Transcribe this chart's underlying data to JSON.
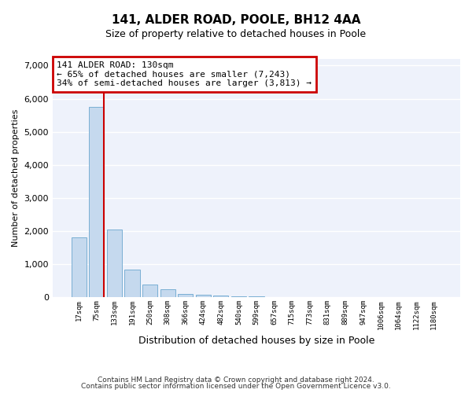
{
  "title": "141, ALDER ROAD, POOLE, BH12 4AA",
  "subtitle": "Size of property relative to detached houses in Poole",
  "xlabel": "Distribution of detached houses by size in Poole",
  "ylabel": "Number of detached properties",
  "bar_color": "#c5d9ee",
  "bar_edge_color": "#7aafd4",
  "background_color": "#eef2fb",
  "grid_color": "#ffffff",
  "categories": [
    "17sqm",
    "75sqm",
    "133sqm",
    "191sqm",
    "250sqm",
    "308sqm",
    "366sqm",
    "424sqm",
    "482sqm",
    "540sqm",
    "599sqm",
    "657sqm",
    "715sqm",
    "773sqm",
    "831sqm",
    "889sqm",
    "947sqm",
    "1006sqm",
    "1064sqm",
    "1122sqm",
    "1180sqm"
  ],
  "values": [
    1800,
    5750,
    2050,
    830,
    380,
    240,
    110,
    80,
    55,
    30,
    20,
    5,
    2,
    0,
    0,
    0,
    0,
    0,
    0,
    0,
    0
  ],
  "ylim": [
    0,
    7200
  ],
  "yticks": [
    0,
    1000,
    2000,
    3000,
    4000,
    5000,
    6000,
    7000
  ],
  "vline_color": "#cc0000",
  "annotation_text": "141 ALDER ROAD: 130sqm\n← 65% of detached houses are smaller (7,243)\n34% of semi-detached houses are larger (3,813) →",
  "annotation_box_color": "#cc0000",
  "footer_line1": "Contains HM Land Registry data © Crown copyright and database right 2024.",
  "footer_line2": "Contains public sector information licensed under the Open Government Licence v3.0."
}
